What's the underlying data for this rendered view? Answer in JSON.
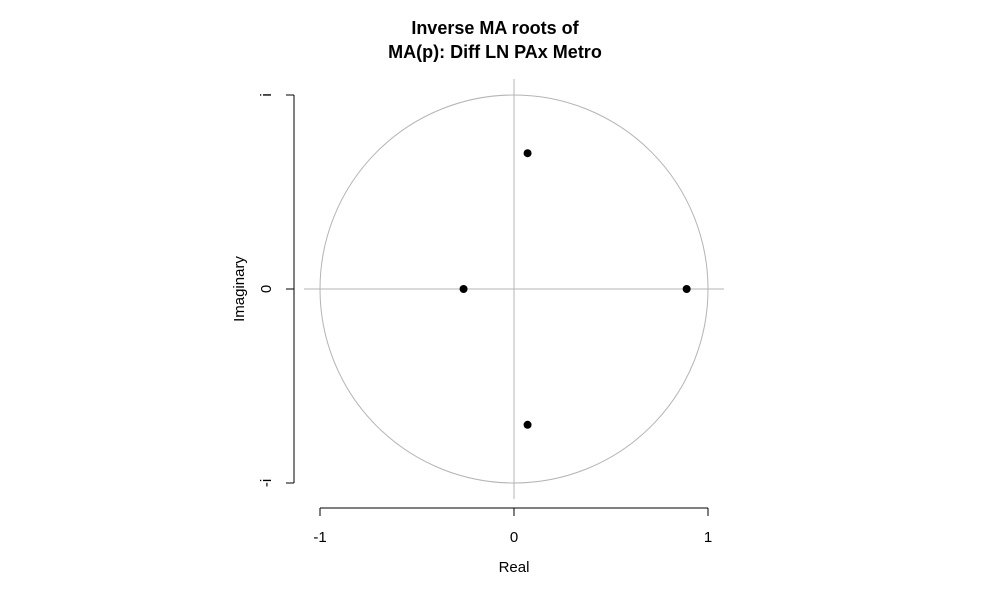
{
  "chart_data": {
    "type": "scatter",
    "title": [
      "Inverse MA roots of",
      "MA(p): Diff LN PAx Metro"
    ],
    "xlabel": "Real",
    "ylabel": "Imaginary",
    "xlim": [
      -1,
      1
    ],
    "ylim": [
      -1,
      1
    ],
    "x_ticks": [
      {
        "value": -1,
        "label": "-1"
      },
      {
        "value": 0,
        "label": "0"
      },
      {
        "value": 1,
        "label": "1"
      }
    ],
    "y_ticks": [
      {
        "value": -1,
        "label": "-i"
      },
      {
        "value": 0,
        "label": "0"
      },
      {
        "value": 1,
        "label": "i"
      }
    ],
    "unit_circle": true,
    "reference_axes": true,
    "colors": {
      "points": "#000000",
      "circle": "#b4b4b4",
      "axes": "#000000"
    },
    "points": [
      {
        "x": 0.07,
        "y": 0.7
      },
      {
        "x": -0.26,
        "y": 0.0
      },
      {
        "x": 0.89,
        "y": 0.0
      },
      {
        "x": 0.07,
        "y": -0.7
      }
    ]
  }
}
